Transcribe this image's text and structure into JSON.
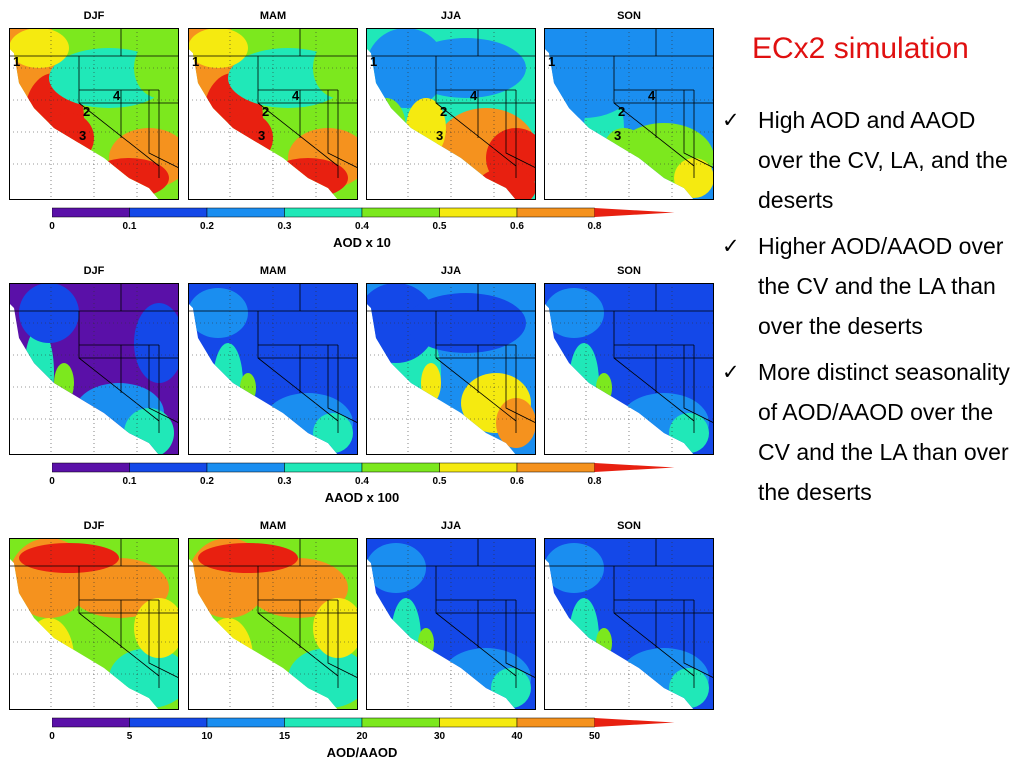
{
  "title": "ECx2 simulation",
  "bullets": [
    "High AOD and AAOD over the CV, LA, and the deserts",
    "Higher AOD/AAOD over the CV and the LA than over the deserts",
    "More distinct seasonality of AOD/AAOD over the CV and the LA than over the deserts"
  ],
  "seasons": [
    "DJF",
    "MAM",
    "JJA",
    "SON"
  ],
  "region_labels": [
    "1",
    "2",
    "3",
    "4"
  ],
  "palette": [
    "#5a10a8",
    "#1448e8",
    "#1a8ef0",
    "#20e8b8",
    "#7ce81e",
    "#f5ea10",
    "#f5921e",
    "#e82010"
  ],
  "rows": [
    {
      "name": "aod",
      "colorbar_title": "AOD x 10",
      "ticks": [
        "0",
        "0.1",
        "0.2",
        "0.3",
        "0.4",
        "0.5",
        "0.6",
        "0.8"
      ],
      "show_region_labels": true,
      "levels": [
        "mixed-high",
        "mixed-high",
        "desert-high",
        "low-blue"
      ]
    },
    {
      "name": "aaod",
      "colorbar_title": "AAOD x 100",
      "ticks": [
        "0",
        "0.1",
        "0.2",
        "0.3",
        "0.4",
        "0.5",
        "0.6",
        "0.8"
      ],
      "show_region_labels": false,
      "levels": [
        "purple-low",
        "blue-low",
        "blue-mid",
        "blue-low"
      ]
    },
    {
      "name": "ratio",
      "colorbar_title": "AOD/AAOD",
      "ticks": [
        "0",
        "5",
        "10",
        "15",
        "20",
        "30",
        "40",
        "50"
      ],
      "show_region_labels": false,
      "levels": [
        "orange-high",
        "orange-high",
        "blue-low",
        "blue-low"
      ]
    }
  ]
}
